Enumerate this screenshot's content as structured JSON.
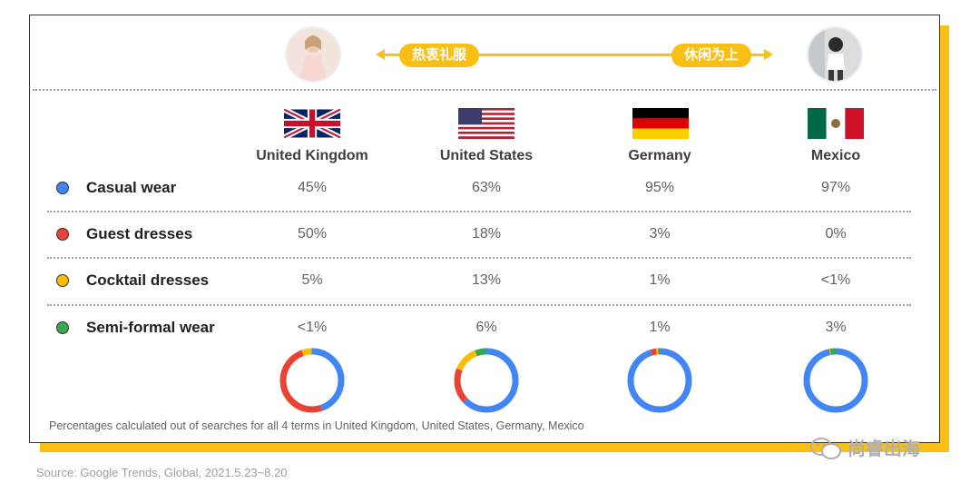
{
  "header": {
    "left_pill": "热衷礼服",
    "right_pill": "休闲为上",
    "left_avatar_icon": "woman-in-dress-photo",
    "right_avatar_icon": "woman-casual-photo"
  },
  "countries": [
    {
      "name": "United Kingdom",
      "flag": "uk-flag-icon"
    },
    {
      "name": "United States",
      "flag": "us-flag-icon"
    },
    {
      "name": "Germany",
      "flag": "germany-flag-icon"
    },
    {
      "name": "Mexico",
      "flag": "mexico-flag-icon"
    }
  ],
  "rows": [
    {
      "label": "Casual wear",
      "color": "#4285F4",
      "cells": [
        "45%",
        "63%",
        "95%",
        "97%"
      ]
    },
    {
      "label": "Guest dresses",
      "color": "#EA4335",
      "cells": [
        "50%",
        "18%",
        "3%",
        "0%"
      ]
    },
    {
      "label": "Cocktail dresses",
      "color": "#FBBC04",
      "cells": [
        "5%",
        "13%",
        "1%",
        "<1%"
      ]
    },
    {
      "label": "Semi-formal wear",
      "color": "#34A853",
      "cells": [
        "<1%",
        "6%",
        "1%",
        "3%"
      ]
    }
  ],
  "footnote": "Percentages calculated out of searches for all 4 terms in United Kingdom, United States, Germany, Mexico",
  "source": "Source: Google Trends, Global, 2021.5.23~8.20",
  "watermark": "尚睿出海",
  "colors": {
    "accent": "#F9BF14",
    "casual": "#4285F4",
    "guest": "#EA4335",
    "cocktail": "#FBBC04",
    "semiformal": "#34A853"
  },
  "chart_data": {
    "type": "pie",
    "categories": [
      "Casual wear",
      "Guest dresses",
      "Cocktail dresses",
      "Semi-formal wear"
    ],
    "series": [
      {
        "name": "United Kingdom",
        "values": [
          45,
          50,
          5,
          0.5
        ]
      },
      {
        "name": "United States",
        "values": [
          63,
          18,
          13,
          6
        ]
      },
      {
        "name": "Germany",
        "values": [
          95,
          3,
          1,
          1
        ]
      },
      {
        "name": "Mexico",
        "values": [
          97,
          0,
          0.5,
          3
        ]
      }
    ],
    "legend": "left"
  }
}
